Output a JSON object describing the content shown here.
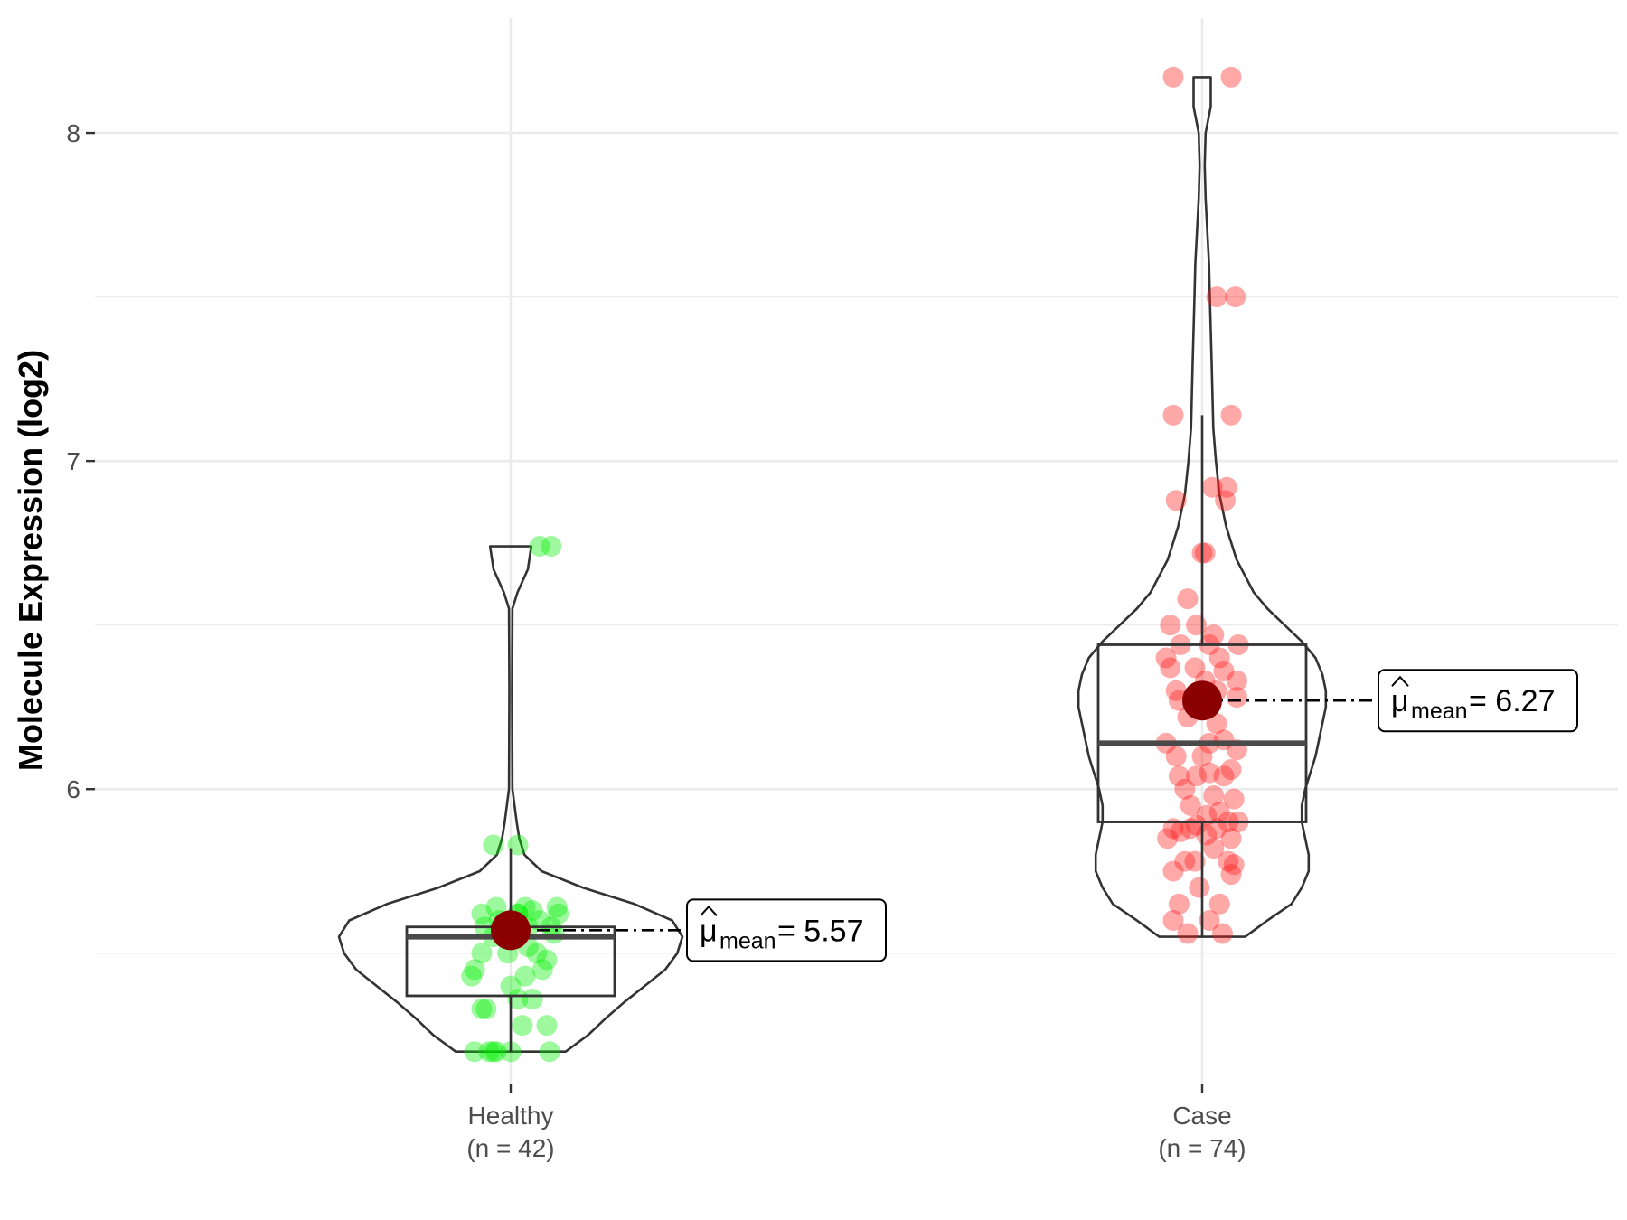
{
  "chart_data": {
    "type": "violin-box-scatter",
    "ylabel": "Molecule Expression (log2)",
    "ylim": [
      5.1,
      8.35
    ],
    "yticks": [
      6,
      7,
      8
    ],
    "grid": true,
    "groups": [
      {
        "key": "healthy",
        "label": "Healthy",
        "n_label": "(n = 42)",
        "color": "#00ee00",
        "box": {
          "q1": 5.37,
          "median": 5.55,
          "q3": 5.58,
          "whisker_low": 5.2,
          "whisker_high": 5.82
        },
        "violin_range": [
          5.2,
          6.74
        ],
        "violin_width": [
          [
            5.2,
            0.32
          ],
          [
            5.25,
            0.45
          ],
          [
            5.3,
            0.55
          ],
          [
            5.35,
            0.66
          ],
          [
            5.4,
            0.78
          ],
          [
            5.45,
            0.9
          ],
          [
            5.5,
            0.97
          ],
          [
            5.55,
            1.0
          ],
          [
            5.6,
            0.94
          ],
          [
            5.65,
            0.72
          ],
          [
            5.7,
            0.42
          ],
          [
            5.75,
            0.18
          ],
          [
            5.8,
            0.08
          ],
          [
            5.85,
            0.05
          ],
          [
            5.9,
            0.035
          ],
          [
            6.0,
            0.01
          ],
          [
            6.3,
            0.008
          ],
          [
            6.55,
            0.01
          ],
          [
            6.6,
            0.04
          ],
          [
            6.67,
            0.1
          ],
          [
            6.74,
            0.12
          ]
        ],
        "mean": 5.57,
        "mean_label": "= 5.57",
        "points": [
          [
            -0.25,
            5.2
          ],
          [
            -0.15,
            5.2
          ],
          [
            -0.12,
            5.2
          ],
          [
            -0.1,
            5.2
          ],
          [
            0.0,
            5.2
          ],
          [
            0.27,
            5.2
          ],
          [
            0.08,
            5.28
          ],
          [
            0.25,
            5.28
          ],
          [
            -0.2,
            5.33
          ],
          [
            -0.17,
            5.33
          ],
          [
            0.05,
            5.36
          ],
          [
            0.15,
            5.36
          ],
          [
            -0.27,
            5.43
          ],
          [
            -0.25,
            5.45
          ],
          [
            0.1,
            5.43
          ],
          [
            0.22,
            5.45
          ],
          [
            -0.2,
            5.5
          ],
          [
            0.18,
            5.5
          ],
          [
            0.25,
            5.48
          ],
          [
            -0.05,
            5.55
          ],
          [
            0.3,
            5.56
          ],
          [
            -0.18,
            5.58
          ],
          [
            0.12,
            5.58
          ],
          [
            0.28,
            5.58
          ],
          [
            -0.08,
            5.6
          ],
          [
            0.2,
            5.6
          ],
          [
            0.33,
            5.62
          ],
          [
            -0.2,
            5.62
          ],
          [
            0.05,
            5.62
          ],
          [
            0.15,
            5.63
          ],
          [
            -0.1,
            5.64
          ],
          [
            0.32,
            5.64
          ],
          [
            0.1,
            5.64
          ],
          [
            0.05,
            5.62
          ],
          [
            0.12,
            5.52
          ],
          [
            -0.12,
            5.55
          ],
          [
            -0.12,
            5.83
          ],
          [
            0.05,
            5.83
          ],
          [
            0.2,
            6.74
          ],
          [
            0.28,
            6.74
          ],
          [
            0.0,
            5.4
          ],
          [
            -0.02,
            5.5
          ]
        ]
      },
      {
        "key": "case",
        "label": "Case",
        "n_label": "(n = 74)",
        "color": "#ff1a1a",
        "box": {
          "q1": 5.9,
          "median": 6.14,
          "q3": 6.44,
          "whisker_low": 5.55,
          "whisker_high": 7.14
        },
        "violin_range": [
          5.55,
          8.17
        ],
        "violin_width": [
          [
            5.55,
            0.25
          ],
          [
            5.6,
            0.38
          ],
          [
            5.65,
            0.52
          ],
          [
            5.7,
            0.58
          ],
          [
            5.75,
            0.62
          ],
          [
            5.8,
            0.62
          ],
          [
            5.85,
            0.6
          ],
          [
            5.9,
            0.58
          ],
          [
            5.95,
            0.58
          ],
          [
            6.0,
            0.6
          ],
          [
            6.05,
            0.63
          ],
          [
            6.1,
            0.66
          ],
          [
            6.15,
            0.68
          ],
          [
            6.2,
            0.7
          ],
          [
            6.25,
            0.72
          ],
          [
            6.3,
            0.72
          ],
          [
            6.35,
            0.7
          ],
          [
            6.4,
            0.66
          ],
          [
            6.45,
            0.58
          ],
          [
            6.5,
            0.48
          ],
          [
            6.55,
            0.38
          ],
          [
            6.6,
            0.3
          ],
          [
            6.7,
            0.2
          ],
          [
            6.8,
            0.14
          ],
          [
            6.9,
            0.1
          ],
          [
            7.0,
            0.08
          ],
          [
            7.1,
            0.065
          ],
          [
            7.2,
            0.06
          ],
          [
            7.3,
            0.055
          ],
          [
            7.4,
            0.05
          ],
          [
            7.5,
            0.045
          ],
          [
            7.6,
            0.04
          ],
          [
            7.7,
            0.03
          ],
          [
            7.8,
            0.02
          ],
          [
            7.9,
            0.015
          ],
          [
            8.0,
            0.02
          ],
          [
            8.08,
            0.05
          ],
          [
            8.13,
            0.05
          ],
          [
            8.17,
            0.05
          ]
        ],
        "mean": 6.27,
        "mean_label": "= 6.27",
        "points": [
          [
            -0.2,
            8.17
          ],
          [
            0.2,
            8.17
          ],
          [
            0.1,
            7.5
          ],
          [
            0.23,
            7.5
          ],
          [
            -0.2,
            7.14
          ],
          [
            0.2,
            7.14
          ],
          [
            -0.18,
            6.88
          ],
          [
            0.07,
            6.92
          ],
          [
            0.17,
            6.92
          ],
          [
            0.16,
            6.88
          ],
          [
            0.0,
            6.72
          ],
          [
            0.02,
            6.72
          ],
          [
            -0.1,
            6.58
          ],
          [
            -0.22,
            6.5
          ],
          [
            -0.04,
            6.5
          ],
          [
            0.08,
            6.47
          ],
          [
            -0.15,
            6.44
          ],
          [
            0.05,
            6.44
          ],
          [
            0.25,
            6.44
          ],
          [
            -0.25,
            6.4
          ],
          [
            0.12,
            6.4
          ],
          [
            -0.22,
            6.37
          ],
          [
            -0.05,
            6.37
          ],
          [
            0.15,
            6.36
          ],
          [
            0.02,
            6.33
          ],
          [
            0.24,
            6.33
          ],
          [
            -0.18,
            6.3
          ],
          [
            0.1,
            6.3
          ],
          [
            -0.16,
            6.27
          ],
          [
            0.24,
            6.28
          ],
          [
            0.05,
            6.25
          ],
          [
            -0.25,
            6.14
          ],
          [
            0.05,
            6.14
          ],
          [
            0.24,
            6.12
          ],
          [
            -0.18,
            6.1
          ],
          [
            -0.04,
            6.04
          ],
          [
            -0.16,
            6.04
          ],
          [
            0.05,
            6.05
          ],
          [
            0.15,
            6.04
          ],
          [
            0.2,
            6.06
          ],
          [
            0.08,
            5.98
          ],
          [
            0.22,
            5.97
          ],
          [
            -0.08,
            5.95
          ],
          [
            0.12,
            5.93
          ],
          [
            0.03,
            5.92
          ],
          [
            0.18,
            5.9
          ],
          [
            -0.2,
            5.88
          ],
          [
            -0.08,
            5.88
          ],
          [
            0.25,
            5.9
          ],
          [
            -0.04,
            5.89
          ],
          [
            0.1,
            5.88
          ],
          [
            -0.15,
            5.87
          ],
          [
            0.03,
            5.86
          ],
          [
            0.2,
            5.85
          ],
          [
            -0.24,
            5.85
          ],
          [
            0.08,
            5.82
          ],
          [
            -0.05,
            5.78
          ],
          [
            0.18,
            5.78
          ],
          [
            -0.12,
            5.78
          ],
          [
            0.22,
            5.77
          ],
          [
            -0.2,
            5.75
          ],
          [
            0.2,
            5.74
          ],
          [
            -0.16,
            5.65
          ],
          [
            0.12,
            5.65
          ],
          [
            -0.2,
            5.6
          ],
          [
            0.05,
            5.6
          ],
          [
            -0.1,
            5.56
          ],
          [
            0.14,
            5.56
          ],
          [
            -0.02,
            5.7
          ],
          [
            0.1,
            6.2
          ],
          [
            -0.12,
            6.0
          ],
          [
            0.0,
            6.1
          ],
          [
            0.15,
            6.15
          ],
          [
            -0.1,
            6.22
          ]
        ]
      }
    ]
  }
}
